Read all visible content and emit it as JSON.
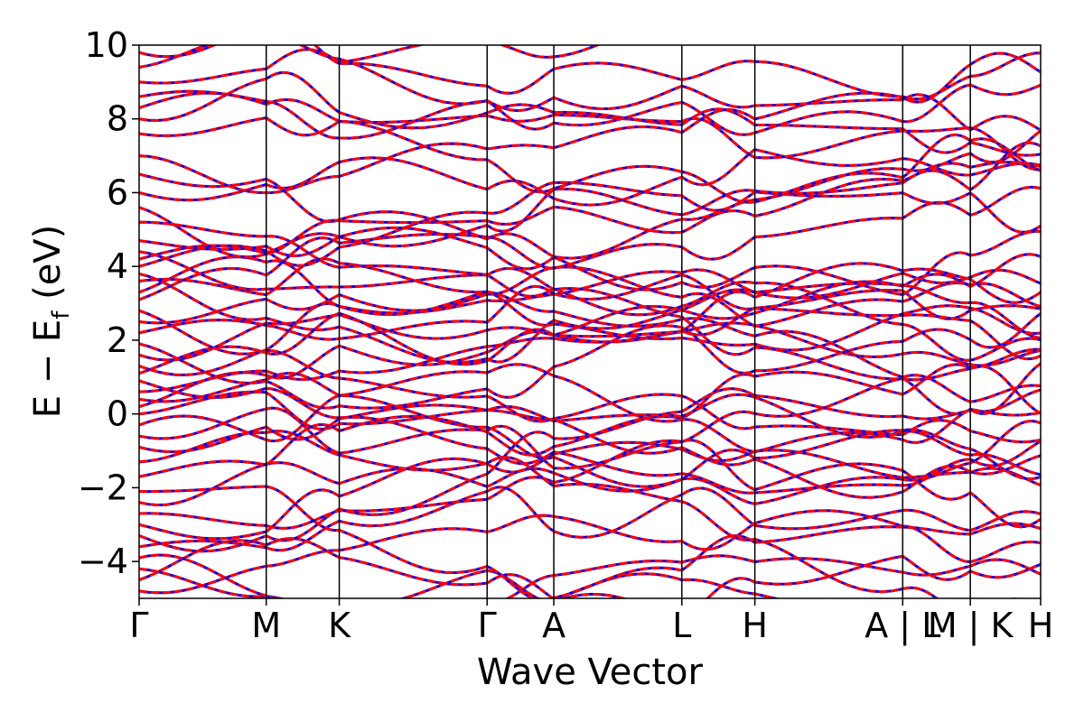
{
  "chart_data": {
    "type": "line",
    "title": "",
    "xlabel": "Wave Vector",
    "ylabel": {
      "main": "E − E",
      "subscript": "f",
      "unit": " (eV)"
    },
    "ylim": [
      -5,
      10
    ],
    "yticks": [
      -4,
      -2,
      0,
      2,
      4,
      6,
      8,
      10
    ],
    "ytick_labels": [
      "−4",
      "−2",
      "0",
      "2",
      "4",
      "6",
      "8",
      "10"
    ],
    "x_domain": [
      0,
      1
    ],
    "high_symmetry_points": [
      {
        "x": 0.0,
        "label": "Γ"
      },
      {
        "x": 0.141,
        "label": "M"
      },
      {
        "x": 0.222,
        "label": "K"
      },
      {
        "x": 0.386,
        "label": "Γ"
      },
      {
        "x": 0.46,
        "label": "A"
      },
      {
        "x": 0.602,
        "label": "L"
      },
      {
        "x": 0.683,
        "label": "H"
      },
      {
        "x": 0.847,
        "label": "A | L"
      },
      {
        "x": 0.922,
        "label": "M | K"
      },
      {
        "x": 1.0,
        "label": "H"
      }
    ],
    "grid": false,
    "series_style": [
      {
        "color": "#0000ff",
        "dash": "solid"
      },
      {
        "color": "#ff0000",
        "dash": "dashed"
      }
    ],
    "band_energy_samples": [
      -4.8,
      -4.5,
      -4.2,
      -3.9,
      -3.6,
      -3.3,
      -3.0,
      -2.7,
      -2.4,
      -2.1,
      -1.7,
      -1.3,
      -0.9,
      -0.6,
      -0.3,
      0.0,
      0.2,
      0.4,
      0.6,
      0.9,
      1.1,
      1.3,
      1.6,
      1.9,
      2.2,
      2.5,
      2.8,
      3.1,
      3.3,
      3.6,
      3.8,
      4.0,
      4.2,
      4.4,
      4.7,
      5.2,
      5.6,
      6.0,
      6.5,
      7.0,
      7.6,
      8.0,
      8.3,
      8.6,
      9.0,
      9.4,
      9.8
    ]
  }
}
